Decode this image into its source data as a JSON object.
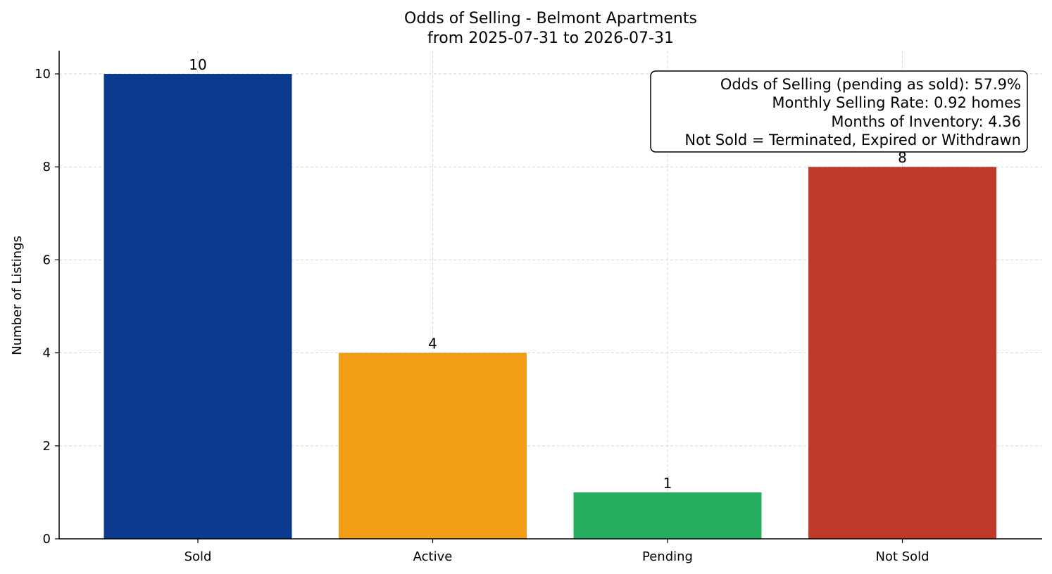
{
  "chart_data": {
    "type": "bar",
    "title": "Odds of Selling - Belmont Apartments",
    "subtitle": "from 2025-07-31 to 2026-07-31",
    "xlabel": "",
    "ylabel": "Number of Listings",
    "categories": [
      "Sold",
      "Active",
      "Pending",
      "Not Sold"
    ],
    "values": [
      10,
      4,
      1,
      8
    ],
    "colors": [
      "#0b3a8f",
      "#f29d14",
      "#27ae60",
      "#c0392b"
    ],
    "data_labels": [
      "10",
      "4",
      "1",
      "8"
    ],
    "ylim": [
      0,
      10.5
    ],
    "yticks": [
      0,
      2,
      4,
      6,
      8,
      10
    ],
    "ytick_labels": [
      "0",
      "2",
      "4",
      "6",
      "8",
      "10"
    ],
    "grid": true,
    "annotation_box": {
      "placement": "top-right",
      "lines": [
        "Odds of Selling (pending as sold): 57.9%",
        "Monthly Selling Rate: 0.92 homes",
        "Months of Inventory: 4.36",
        "Not Sold = Terminated, Expired or Withdrawn"
      ]
    }
  }
}
